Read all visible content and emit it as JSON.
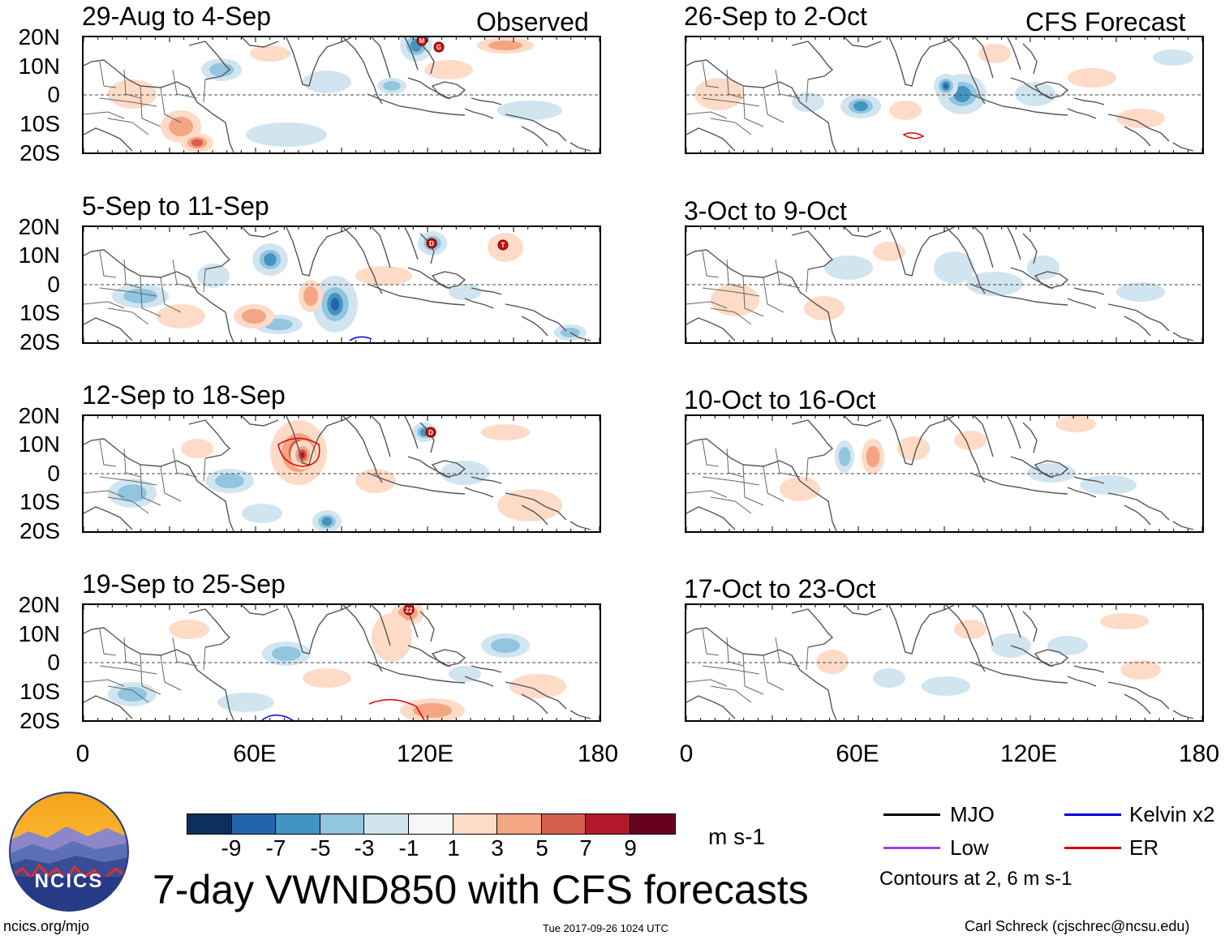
{
  "title": "7-day VWND850 with CFS forecasts",
  "headers": {
    "observed": "Observed",
    "forecast": "CFS Forecast"
  },
  "panels": {
    "observed": [
      "29-Aug to 4-Sep",
      "5-Sep to 11-Sep",
      "12-Sep to 18-Sep",
      "19-Sep to 25-Sep"
    ],
    "forecast": [
      "26-Sep to 2-Oct",
      "3-Oct to 9-Oct",
      "10-Oct to 16-Oct",
      "17-Oct to 23-Oct"
    ]
  },
  "lat_labels": [
    "20N",
    "10N",
    "0",
    "10S",
    "20S"
  ],
  "lon_labels": [
    "0",
    "60E",
    "120E",
    "180"
  ],
  "storm_markers": [
    {
      "panel": "obs-0",
      "label": "M"
    },
    {
      "panel": "obs-0",
      "label": "G"
    },
    {
      "panel": "obs-1",
      "label": "D"
    },
    {
      "panel": "obs-1",
      "label": "T"
    },
    {
      "panel": "obs-2",
      "label": "D"
    },
    {
      "panel": "obs-3",
      "label": "22"
    }
  ],
  "colorbar": {
    "colors": [
      "#0d2f5e",
      "#2166ac",
      "#4393c3",
      "#92c5de",
      "#d1e5f0",
      "#f7f7f7",
      "#fddbc7",
      "#f4a582",
      "#d6604d",
      "#b2182b",
      "#67001f"
    ],
    "ticks": [
      "-9",
      "-7",
      "-5",
      "-3",
      "-1",
      "1",
      "3",
      "5",
      "7",
      "9"
    ],
    "units": "m s-1"
  },
  "legend": {
    "items": [
      {
        "label": "MJO",
        "color": "#000000"
      },
      {
        "label": "Kelvin x2",
        "color": "#0000dd"
      },
      {
        "label": "Low",
        "color": "#a040e0"
      },
      {
        "label": "ER",
        "color": "#dd0000"
      }
    ],
    "note": "Contours at 2, 6 m s-1"
  },
  "footer": {
    "logo_text": "NCICS",
    "url": "ncics.org/mjo",
    "timestamp": "Tue 2017-09-26 1024 UTC",
    "credit": "Carl Schreck (cjschrec@ncsu.edu)"
  }
}
